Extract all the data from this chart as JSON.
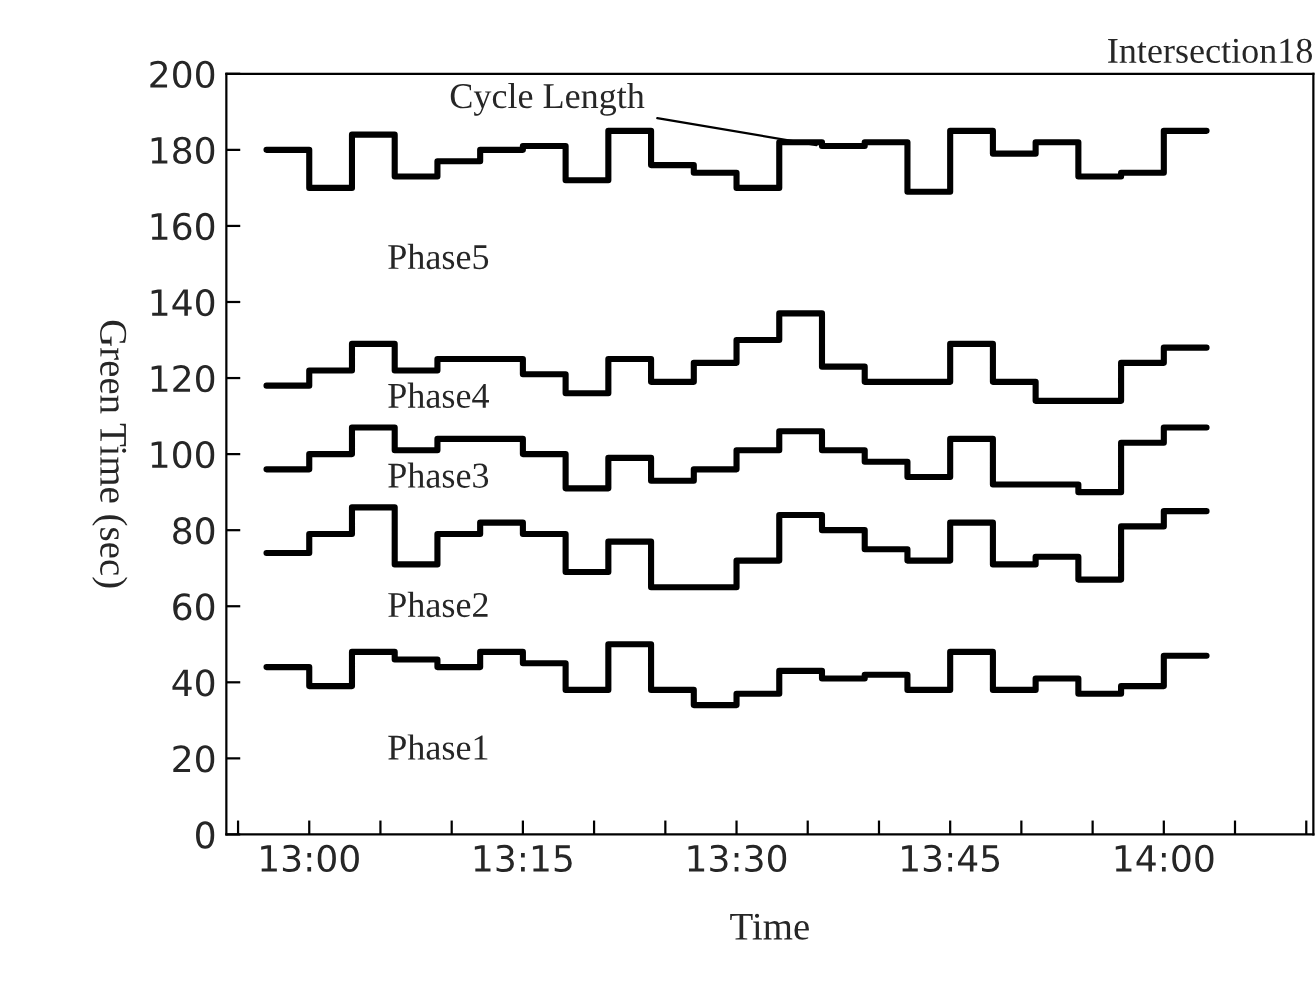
{
  "chart_data": {
    "type": "step",
    "title": "Intersection18",
    "xlabel": "Time",
    "ylabel": "Green Time (sec)",
    "x": [
      12.95,
      13.0,
      13.05,
      13.1,
      13.15,
      13.2,
      13.25,
      13.3,
      13.35,
      13.4,
      13.45,
      13.5,
      13.55,
      13.6,
      13.65,
      13.7,
      13.75,
      13.8,
      13.85,
      13.9,
      13.95,
      14.0,
      14.05
    ],
    "series": [
      {
        "color": "#000000",
        "values": [
          44,
          39,
          48,
          46,
          44,
          48,
          45,
          38,
          50,
          38,
          34,
          37,
          43,
          41,
          42,
          38,
          48,
          38,
          41,
          37,
          39,
          47,
          47
        ]
      },
      {
        "color": "#000000",
        "values": [
          74,
          79,
          86,
          71,
          79,
          82,
          79,
          69,
          77,
          65,
          65,
          72,
          84,
          80,
          75,
          72,
          82,
          71,
          73,
          67,
          81,
          85,
          85
        ]
      },
      {
        "color": "#000000",
        "values": [
          96,
          100,
          107,
          101,
          104,
          104,
          100,
          91,
          99,
          93,
          96,
          101,
          106,
          101,
          98,
          94,
          104,
          92,
          92,
          90,
          103,
          107,
          107
        ]
      },
      {
        "color": "#000000",
        "values": [
          118,
          122,
          129,
          122,
          125,
          125,
          121,
          116,
          125,
          119,
          124,
          130,
          137,
          123,
          119,
          119,
          129,
          119,
          114,
          114,
          124,
          128,
          128
        ]
      },
      {
        "name": "Cycle Length",
        "color": "#000000",
        "values": [
          180,
          170,
          184,
          173,
          177,
          180,
          181,
          172,
          185,
          176,
          174,
          170,
          182,
          181,
          182,
          169,
          185,
          179,
          182,
          173,
          174,
          185,
          185
        ]
      }
    ],
    "annotations": [
      "Phase5",
      "Phase4",
      "Phase3",
      "Phase2",
      "Phase1"
    ],
    "xlim": [
      12.903,
      14.175
    ],
    "xticks": [
      {
        "value": 12.9167,
        "label": null
      },
      {
        "value": 13.0,
        "label": "13:00"
      },
      {
        "value": 13.0833,
        "label": null
      },
      {
        "value": 13.1667,
        "label": null
      },
      {
        "value": 13.25,
        "label": "13:15"
      },
      {
        "value": 13.3333,
        "label": null
      },
      {
        "value": 13.4167,
        "label": null
      },
      {
        "value": 13.5,
        "label": "13:30"
      },
      {
        "value": 13.5833,
        "label": null
      },
      {
        "value": 13.6667,
        "label": null
      },
      {
        "value": 13.75,
        "label": "13:45"
      },
      {
        "value": 13.8333,
        "label": null
      },
      {
        "value": 13.9167,
        "label": null
      },
      {
        "value": 14.0,
        "label": "14:00"
      },
      {
        "value": 14.0833,
        "label": null
      },
      {
        "value": 14.1667,
        "label": null
      }
    ],
    "ylim": [
      0,
      200
    ],
    "yticks": [
      0,
      20,
      40,
      60,
      80,
      100,
      120,
      140,
      160,
      180,
      200
    ],
    "grid": false,
    "legend": false,
    "line_style": "solid",
    "marker": "none"
  }
}
